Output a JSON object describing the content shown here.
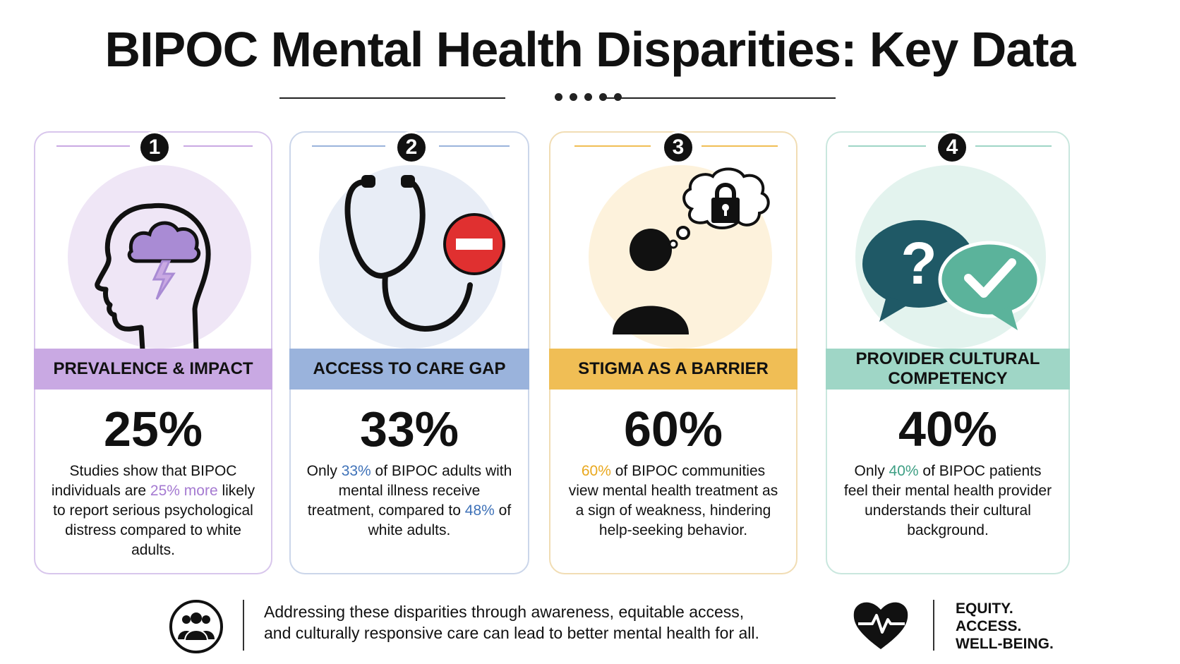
{
  "title": "BIPOC Mental Health Disparities: Key Data",
  "colors": {
    "purple": "#c9a9e3",
    "blue": "#9ab3dc",
    "yellow": "#f0be55",
    "teal": "#9fd6c6"
  },
  "cards": [
    {
      "number": "1",
      "icon": "head-storm-cloud-icon",
      "heading": "PREVALENCE & IMPACT",
      "stat": "25%",
      "desc": {
        "pre": "Studies show that BIPOC individuals are ",
        "highlight": "25% more",
        "post": " likely to report serious psychological distress compared to white adults."
      }
    },
    {
      "number": "2",
      "icon": "stethoscope-blocked-icon",
      "heading": "ACCESS TO CARE GAP",
      "stat": "33%",
      "desc": {
        "pre": "Only ",
        "highlight": "33%",
        "mid": " of BIPOC adults with mental illness receive treatment, compared to ",
        "highlight2": "48%",
        "post": " of white adults."
      }
    },
    {
      "number": "3",
      "icon": "person-thought-lock-icon",
      "heading": "STIGMA AS A BARRIER",
      "stat": "60%",
      "desc": {
        "pre": "",
        "highlight": "60%",
        "post": " of BIPOC communities view mental health treatment as a sign of weakness, hindering help-seeking behavior."
      }
    },
    {
      "number": "4",
      "icon": "speech-bubbles-question-check-icon",
      "heading": "PROVIDER CULTURAL COMPETENCY",
      "stat": "40%",
      "desc": {
        "pre": "Only ",
        "highlight": "40%",
        "post": " of BIPOC patients feel their mental health provider understands their cultural background."
      }
    }
  ],
  "footer": {
    "icon": "community-group-icon",
    "line1": "Addressing these disparities through awareness, equitable access,",
    "line2": "and culturally responsive care can lead to better mental health for all.",
    "heart_icon": "heart-pulse-icon",
    "tagline": [
      "EQUITY.",
      "ACCESS.",
      "WELL-BEING."
    ]
  }
}
